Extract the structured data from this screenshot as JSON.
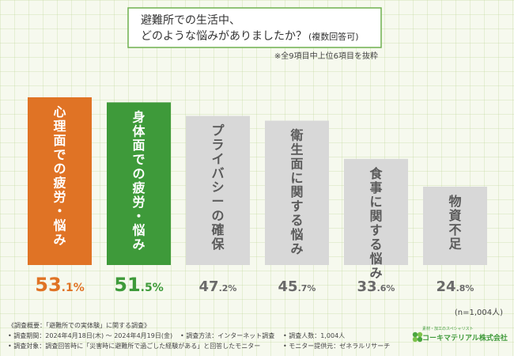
{
  "chart_data": {
    "type": "bar",
    "title_line1": "避難所での生活中、",
    "title_line2": "どのような悩みがありましたか？",
    "title_note": "(複数回答可)",
    "subnote": "※全9項目中上位6項目を抜粋",
    "categories": [
      "心理面での疲労・悩み",
      "身体面での疲労・悩み",
      "プライバシーの確保",
      "衛生面に関する悩み",
      "食事に関する悩み",
      "物資不足"
    ],
    "values": [
      53.1,
      51.5,
      47.2,
      45.7,
      33.6,
      24.8
    ],
    "value_labels": [
      "53.1%",
      "51.5%",
      "47.2%",
      "45.7%",
      "33.6%",
      "24.8%"
    ],
    "ylim": [
      0,
      55
    ],
    "sample_size": "(n=1,004人)",
    "colors": {
      "bar1": "#e07325",
      "bar2": "#3e9a3a",
      "bar_other": "#d8d8d8",
      "value1": "#e07325",
      "value2": "#3e9a3a",
      "value_other": "#6a6a6a",
      "bar_text": "#5a5a5a"
    }
  },
  "footer": {
    "line1": "《調査概要：「避難所での実体験」に関する調査》",
    "line2a": "• 調査期間：2024年4月18日(木) ～ 2024年4月19日(金)",
    "line2b": "• 調査方法：インターネット調査",
    "line2c": "• 調査人数：1,004人",
    "line3a": "• 調査対象：調査回答時に「災害時に避難所で過ごした経験がある」と回答したモニター",
    "line3b": "• モニター提供元：ゼネラルリサーチ"
  },
  "logo": {
    "sub": "素材・加工のスペシャリスト",
    "name": "コーキマテリアル株式会社",
    "icon": "clover-icon"
  }
}
